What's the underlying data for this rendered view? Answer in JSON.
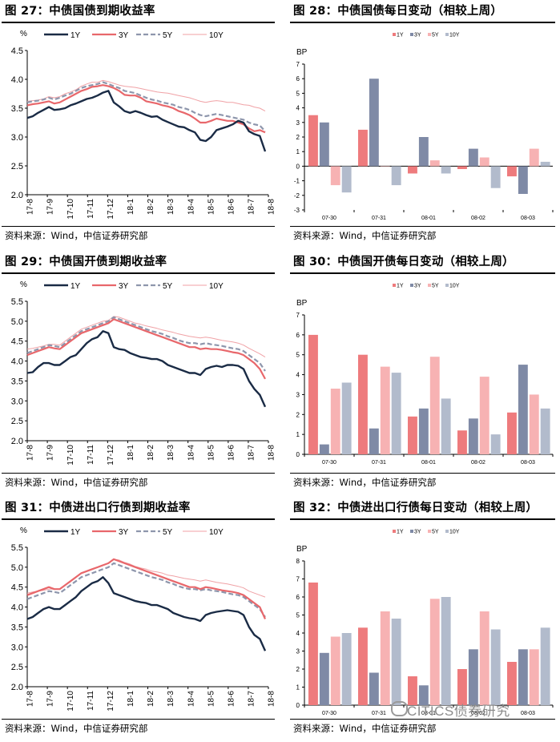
{
  "colors": {
    "y1": "#1a2b45",
    "y3": "#e8676b",
    "y5": "#8e96ac",
    "y10": "#f0a2a6",
    "bar1": "#ee7b7d",
    "bar3": "#7f8aa6",
    "bar5": "#f7b2b3",
    "bar10": "#b2bbcc"
  },
  "source_text": "资料来源：Wind，中信证券研究部",
  "watermark": {
    "text": "CITICS债券研究",
    "icon": "wechat-icon"
  },
  "chart_data": [
    {
      "id": "fig27",
      "type": "line",
      "title": "图 27：中债国债到期收益率",
      "ylabel": "%",
      "ylim": [
        2.0,
        4.5
      ],
      "yticks": [
        "2.0",
        "2.5",
        "3.0",
        "3.5",
        "4.0",
        "4.5"
      ],
      "xticks": [
        "17-8",
        "17-9",
        "17-10",
        "17-11",
        "17-12",
        "18-1",
        "18-2",
        "18-3",
        "18-4",
        "18-5",
        "18-6",
        "18-7",
        "18-8"
      ],
      "legend": [
        "1Y",
        "3Y",
        "5Y",
        "10Y"
      ],
      "series": [
        {
          "name": "1Y",
          "values": [
            3.33,
            3.36,
            3.42,
            3.47,
            3.52,
            3.47,
            3.48,
            3.5,
            3.55,
            3.58,
            3.62,
            3.66,
            3.68,
            3.72,
            3.77,
            3.8,
            3.6,
            3.53,
            3.45,
            3.42,
            3.45,
            3.42,
            3.38,
            3.35,
            3.36,
            3.3,
            3.26,
            3.22,
            3.18,
            3.17,
            3.12,
            3.08,
            2.95,
            2.93,
            3.0,
            3.12,
            3.15,
            3.18,
            3.22,
            3.28,
            3.25,
            3.1,
            3.05,
            3.02,
            2.75
          ]
        },
        {
          "name": "3Y",
          "values": [
            3.55,
            3.57,
            3.58,
            3.6,
            3.62,
            3.58,
            3.6,
            3.65,
            3.7,
            3.75,
            3.8,
            3.83,
            3.87,
            3.88,
            3.9,
            3.88,
            3.85,
            3.8,
            3.73,
            3.72,
            3.72,
            3.68,
            3.62,
            3.6,
            3.58,
            3.55,
            3.53,
            3.5,
            3.45,
            3.42,
            3.38,
            3.32,
            3.25,
            3.25,
            3.28,
            3.32,
            3.3,
            3.28,
            3.28,
            3.25,
            3.22,
            3.15,
            3.1,
            3.12,
            3.08
          ]
        },
        {
          "name": "5Y",
          "values": [
            3.6,
            3.62,
            3.63,
            3.65,
            3.68,
            3.65,
            3.68,
            3.72,
            3.75,
            3.8,
            3.85,
            3.88,
            3.9,
            3.92,
            3.95,
            3.92,
            3.88,
            3.85,
            3.8,
            3.78,
            3.76,
            3.72,
            3.68,
            3.65,
            3.63,
            3.6,
            3.58,
            3.56,
            3.52,
            3.5,
            3.47,
            3.42,
            3.38,
            3.36,
            3.38,
            3.4,
            3.38,
            3.36,
            3.34,
            3.32,
            3.3,
            3.25,
            3.22,
            3.2,
            3.1
          ]
        },
        {
          "name": "10Y",
          "values": [
            3.62,
            3.63,
            3.64,
            3.66,
            3.7,
            3.68,
            3.7,
            3.75,
            3.78,
            3.82,
            3.88,
            3.92,
            3.95,
            3.95,
            3.98,
            3.96,
            3.93,
            3.9,
            3.88,
            3.87,
            3.86,
            3.84,
            3.82,
            3.8,
            3.78,
            3.77,
            3.76,
            3.74,
            3.72,
            3.7,
            3.68,
            3.65,
            3.62,
            3.6,
            3.62,
            3.63,
            3.62,
            3.6,
            3.6,
            3.58,
            3.56,
            3.55,
            3.52,
            3.5,
            3.45
          ]
        }
      ]
    },
    {
      "id": "fig28",
      "type": "bar",
      "title": "图 28：中债国债每日变动（相较上周）",
      "ylabel": "BP",
      "ylim": [
        -3,
        7
      ],
      "yticks": [
        "-3",
        "-2",
        "-1",
        "0",
        "1",
        "2",
        "3",
        "4",
        "5",
        "6",
        "7"
      ],
      "categories": [
        "07-30",
        "07-31",
        "08-01",
        "08-02",
        "08-03"
      ],
      "legend": [
        "1Y",
        "3Y",
        "5Y",
        "10Y"
      ],
      "series": [
        {
          "name": "1Y",
          "values": [
            3.5,
            2.5,
            -0.5,
            -0.2,
            -0.7
          ]
        },
        {
          "name": "3Y",
          "values": [
            3.0,
            6.0,
            2.0,
            1.2,
            -1.9
          ]
        },
        {
          "name": "5Y",
          "values": [
            -1.3,
            0.0,
            0.4,
            0.6,
            1.2
          ]
        },
        {
          "name": "10Y",
          "values": [
            -1.8,
            -1.3,
            -0.5,
            -1.5,
            0.3
          ]
        }
      ]
    },
    {
      "id": "fig29",
      "type": "line",
      "title": "图 29：中债国开债到期收益率",
      "ylabel": "%",
      "ylim": [
        2.0,
        5.5
      ],
      "yticks": [
        "2.0",
        "2.5",
        "3.0",
        "3.5",
        "4.0",
        "4.5",
        "5.0",
        "5.5"
      ],
      "xticks": [
        "17-8",
        "17-9",
        "17-10",
        "17-11",
        "17-12",
        "18-1",
        "18-2",
        "18-3",
        "18-4",
        "18-5",
        "18-6",
        "18-7",
        "18-8"
      ],
      "legend": [
        "1Y",
        "3Y",
        "5Y",
        "10Y"
      ],
      "series": [
        {
          "name": "1Y",
          "values": [
            3.7,
            3.72,
            3.85,
            3.95,
            3.95,
            3.9,
            3.9,
            4.0,
            4.1,
            4.15,
            4.3,
            4.45,
            4.55,
            4.6,
            4.75,
            4.7,
            4.35,
            4.3,
            4.28,
            4.2,
            4.15,
            4.1,
            4.08,
            4.05,
            4.05,
            4.0,
            3.9,
            3.85,
            3.8,
            3.75,
            3.7,
            3.7,
            3.65,
            3.8,
            3.85,
            3.88,
            3.85,
            3.9,
            3.9,
            3.88,
            3.8,
            3.5,
            3.3,
            3.15,
            2.85
          ]
        },
        {
          "name": "3Y",
          "values": [
            4.15,
            4.2,
            4.25,
            4.3,
            4.35,
            4.32,
            4.3,
            4.4,
            4.5,
            4.6,
            4.7,
            4.75,
            4.8,
            4.85,
            4.9,
            4.95,
            5.05,
            5.0,
            4.95,
            4.9,
            4.85,
            4.8,
            4.75,
            4.7,
            4.65,
            4.6,
            4.55,
            4.5,
            4.45,
            4.4,
            4.35,
            4.35,
            4.3,
            4.32,
            4.3,
            4.3,
            4.28,
            4.25,
            4.22,
            4.2,
            4.15,
            4.05,
            3.95,
            3.8,
            3.55
          ]
        },
        {
          "name": "5Y",
          "values": [
            4.2,
            4.25,
            4.3,
            4.35,
            4.4,
            4.38,
            4.35,
            4.45,
            4.55,
            4.65,
            4.75,
            4.8,
            4.85,
            4.9,
            4.95,
            5.0,
            5.1,
            5.05,
            5.0,
            4.95,
            4.9,
            4.85,
            4.8,
            4.75,
            4.72,
            4.68,
            4.62,
            4.58,
            4.52,
            4.48,
            4.45,
            4.45,
            4.42,
            4.45,
            4.42,
            4.4,
            4.38,
            4.35,
            4.32,
            4.3,
            4.25,
            4.15,
            4.05,
            3.95,
            3.75
          ]
        },
        {
          "name": "10Y",
          "values": [
            4.3,
            4.32,
            4.35,
            4.38,
            4.42,
            4.42,
            4.4,
            4.5,
            4.6,
            4.7,
            4.8,
            4.85,
            4.9,
            4.95,
            5.0,
            5.02,
            5.12,
            5.1,
            5.05,
            5.0,
            4.95,
            4.92,
            4.88,
            4.85,
            4.82,
            4.78,
            4.75,
            4.72,
            4.68,
            4.65,
            4.62,
            4.6,
            4.58,
            4.6,
            4.58,
            4.55,
            4.52,
            4.5,
            4.48,
            4.45,
            4.4,
            4.32,
            4.25,
            4.18,
            4.1
          ]
        }
      ]
    },
    {
      "id": "fig30",
      "type": "bar",
      "title": "图 30：中债国开债每日变动（相较上周）",
      "ylabel": "BP",
      "ylim": [
        0,
        7
      ],
      "yticks": [
        "0",
        "1",
        "2",
        "3",
        "4",
        "5",
        "6",
        "7"
      ],
      "categories": [
        "07-30",
        "07-31",
        "08-01",
        "08-02",
        "08-03"
      ],
      "legend": [
        "1Y",
        "3Y",
        "5Y",
        "10Y"
      ],
      "series": [
        {
          "name": "1Y",
          "values": [
            6.0,
            5.0,
            1.9,
            1.2,
            2.1
          ]
        },
        {
          "name": "3Y",
          "values": [
            0.5,
            1.3,
            2.3,
            1.8,
            4.5
          ]
        },
        {
          "name": "5Y",
          "values": [
            3.3,
            4.4,
            4.9,
            3.9,
            3.0
          ]
        },
        {
          "name": "10Y",
          "values": [
            3.6,
            4.1,
            2.8,
            1.0,
            2.3
          ]
        }
      ]
    },
    {
      "id": "fig31",
      "type": "line",
      "title": "图 31：中债进出口行债到期收益率",
      "ylabel": "%",
      "ylim": [
        2.0,
        5.5
      ],
      "yticks": [
        "2.0",
        "2.5",
        "3.0",
        "3.5",
        "4.0",
        "4.5",
        "5.0",
        "5.5"
      ],
      "xticks": [
        "17-8",
        "17-9",
        "17-10",
        "17-11",
        "17-12",
        "18-1",
        "18-2",
        "18-3",
        "18-4",
        "18-5",
        "18-6",
        "18-7",
        "18-8"
      ],
      "legend": [
        "1Y",
        "3Y",
        "5Y",
        "10Y"
      ],
      "series": [
        {
          "name": "1Y",
          "values": [
            3.7,
            3.75,
            3.85,
            3.95,
            4.0,
            3.95,
            3.95,
            4.05,
            4.15,
            4.25,
            4.4,
            4.5,
            4.6,
            4.65,
            4.75,
            4.6,
            4.35,
            4.3,
            4.25,
            4.2,
            4.15,
            4.12,
            4.1,
            4.05,
            4.05,
            4.0,
            3.95,
            3.85,
            3.8,
            3.75,
            3.72,
            3.7,
            3.65,
            3.8,
            3.85,
            3.88,
            3.9,
            3.92,
            3.9,
            3.88,
            3.8,
            3.5,
            3.3,
            3.2,
            2.9
          ]
        },
        {
          "name": "3Y",
          "values": [
            4.3,
            4.35,
            4.4,
            4.45,
            4.5,
            4.45,
            4.45,
            4.55,
            4.65,
            4.75,
            4.85,
            4.9,
            4.95,
            5.0,
            5.05,
            5.1,
            5.2,
            5.15,
            5.1,
            5.05,
            5.0,
            4.95,
            4.9,
            4.85,
            4.8,
            4.75,
            4.7,
            4.65,
            4.6,
            4.55,
            4.5,
            4.5,
            4.45,
            4.5,
            4.48,
            4.45,
            4.42,
            4.4,
            4.38,
            4.35,
            4.3,
            4.2,
            4.1,
            4.0,
            3.7
          ]
        },
        {
          "name": "5Y",
          "values": [
            4.2,
            4.25,
            4.3,
            4.35,
            4.4,
            4.38,
            4.35,
            4.45,
            4.55,
            4.65,
            4.75,
            4.8,
            4.85,
            4.9,
            4.95,
            5.0,
            5.1,
            5.05,
            5.0,
            4.95,
            4.9,
            4.85,
            4.8,
            4.75,
            4.72,
            4.68,
            4.62,
            4.58,
            4.52,
            4.48,
            4.45,
            4.45,
            4.42,
            4.45,
            4.42,
            4.4,
            4.38,
            4.35,
            4.32,
            4.3,
            4.25,
            4.15,
            4.05,
            3.95,
            3.75
          ]
        },
        {
          "name": "10Y",
          "values": [
            4.35,
            4.38,
            4.4,
            4.42,
            4.45,
            4.45,
            4.45,
            4.55,
            4.65,
            4.75,
            4.85,
            4.9,
            4.95,
            5.0,
            5.05,
            5.1,
            5.2,
            5.18,
            5.12,
            5.08,
            5.02,
            4.98,
            4.95,
            4.9,
            4.88,
            4.85,
            4.8,
            4.78,
            4.75,
            4.72,
            4.7,
            4.68,
            4.65,
            4.68,
            4.65,
            4.62,
            4.6,
            4.58,
            4.55,
            4.52,
            4.48,
            4.4,
            4.35,
            4.3,
            4.25
          ]
        }
      ]
    },
    {
      "id": "fig32",
      "type": "bar",
      "title": "图 32：中债进出口行债每日变动（相较上周）",
      "ylabel": "BP",
      "ylim": [
        0,
        8
      ],
      "yticks": [
        "0",
        "1",
        "2",
        "3",
        "4",
        "5",
        "6",
        "7",
        "8"
      ],
      "categories": [
        "07-30",
        "07-31",
        "08-01",
        "08-02",
        "08-03"
      ],
      "legend": [
        "1Y",
        "3Y",
        "5Y",
        "10Y"
      ],
      "series": [
        {
          "name": "1Y",
          "values": [
            6.8,
            4.3,
            1.6,
            2.0,
            2.4
          ]
        },
        {
          "name": "3Y",
          "values": [
            2.9,
            1.8,
            1.1,
            3.1,
            3.1
          ]
        },
        {
          "name": "5Y",
          "values": [
            3.8,
            5.2,
            5.9,
            5.2,
            3.1
          ]
        },
        {
          "name": "10Y",
          "values": [
            4.0,
            4.8,
            6.0,
            4.2,
            4.3
          ]
        }
      ]
    }
  ]
}
